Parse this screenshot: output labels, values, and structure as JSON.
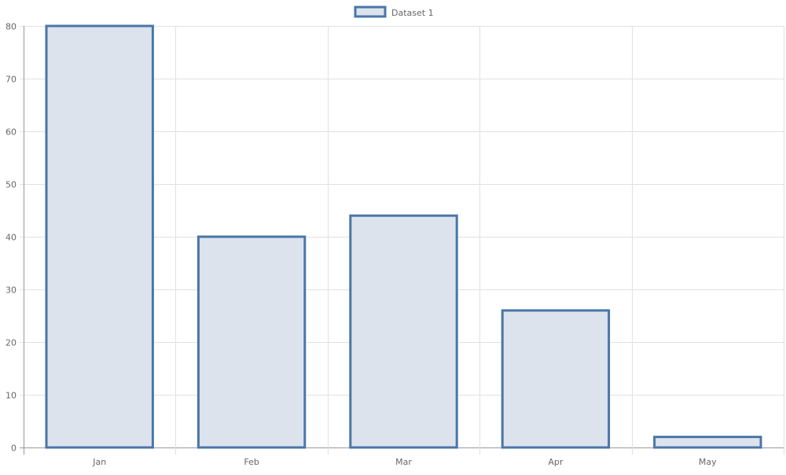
{
  "chart_data": {
    "type": "bar",
    "title": "",
    "xlabel": "",
    "ylabel": "",
    "categories": [
      "Jan",
      "Feb",
      "Mar",
      "Apr",
      "May"
    ],
    "series": [
      {
        "name": "Dataset 1",
        "values": [
          80,
          40,
          44,
          26,
          2
        ]
      }
    ],
    "ylim": [
      0,
      80
    ],
    "yticks": [
      "0",
      "10",
      "20",
      "30",
      "40",
      "50",
      "60",
      "70",
      "80"
    ],
    "grid": true,
    "legend": "top",
    "colors": {
      "bar_fill": "#dce3ed",
      "bar_border": "#4a76a8",
      "grid": "#e1e1e1",
      "axis": "#999999"
    }
  }
}
